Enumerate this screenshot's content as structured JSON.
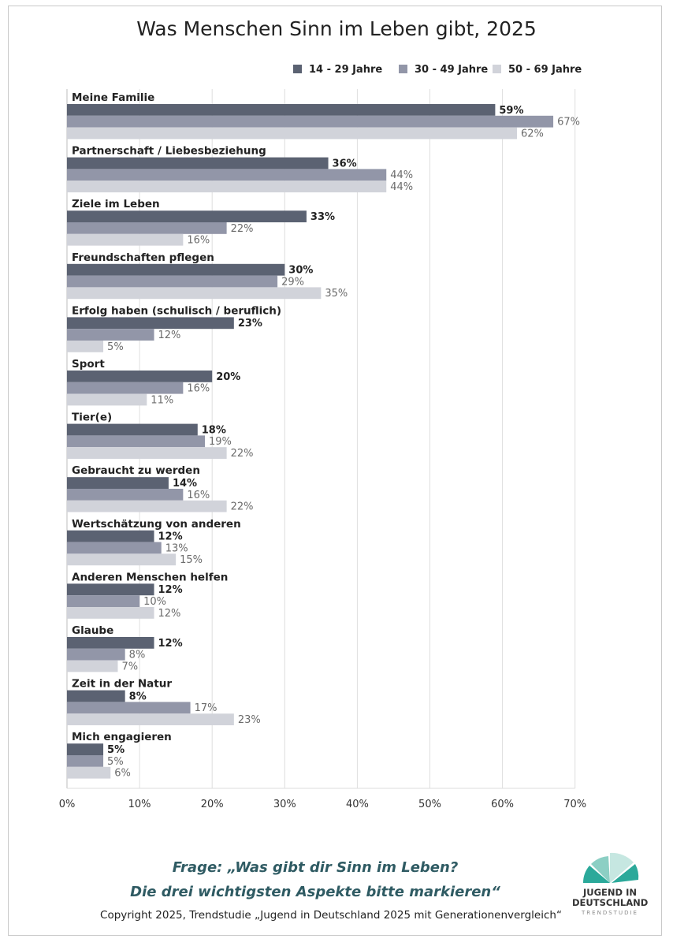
{
  "chart_data": {
    "type": "bar",
    "orientation": "horizontal",
    "title": "Was Menschen Sinn im Leben gibt, 2025",
    "categories": [
      "Meine Familie",
      "Partnerschaft / Liebesbeziehung",
      "Ziele im Leben",
      "Freundschaften pflegen",
      "Erfolg haben (schulisch / beruflich)",
      "Sport",
      "Tier(e)",
      "Gebraucht zu werden",
      "Wertschätzung von anderen",
      "Anderen Menschen helfen",
      "Glaube",
      "Zeit in der Natur",
      "Mich engagieren"
    ],
    "series": [
      {
        "name": "14 - 29 Jahre",
        "color": "#5b6272",
        "values": [
          59,
          36,
          33,
          30,
          23,
          20,
          18,
          14,
          12,
          12,
          12,
          8,
          5
        ]
      },
      {
        "name": "30 - 49 Jahre",
        "color": "#9296a8",
        "values": [
          67,
          44,
          22,
          29,
          12,
          16,
          19,
          16,
          13,
          10,
          8,
          17,
          5
        ]
      },
      {
        "name": "50 - 69 Jahre",
        "color": "#d1d3da",
        "values": [
          62,
          44,
          16,
          35,
          5,
          11,
          22,
          22,
          15,
          12,
          7,
          23,
          6
        ]
      }
    ],
    "value_suffix": "%",
    "xlim": [
      0,
      70
    ],
    "xticks": [
      "0%",
      "10%",
      "20%",
      "30%",
      "40%",
      "50%",
      "60%",
      "70%"
    ],
    "grid": true,
    "legend_position": "top-right"
  },
  "footer": {
    "question_line1": "Frage: „Was gibt dir Sinn im Leben?",
    "question_line2": "Die drei wichtigsten Aspekte bitte markieren“",
    "copyright": "Copyright 2025, Trendstudie „Jugend in Deutschland 2025 mit Generationenvergleich“"
  },
  "logo": {
    "line1": "JUGEND IN",
    "line2": "DEUTSCHLAND",
    "line3": "TRENDSTUDIE",
    "colors": [
      "#2ba99a",
      "#8ccfc4",
      "#c6e7e1"
    ]
  }
}
